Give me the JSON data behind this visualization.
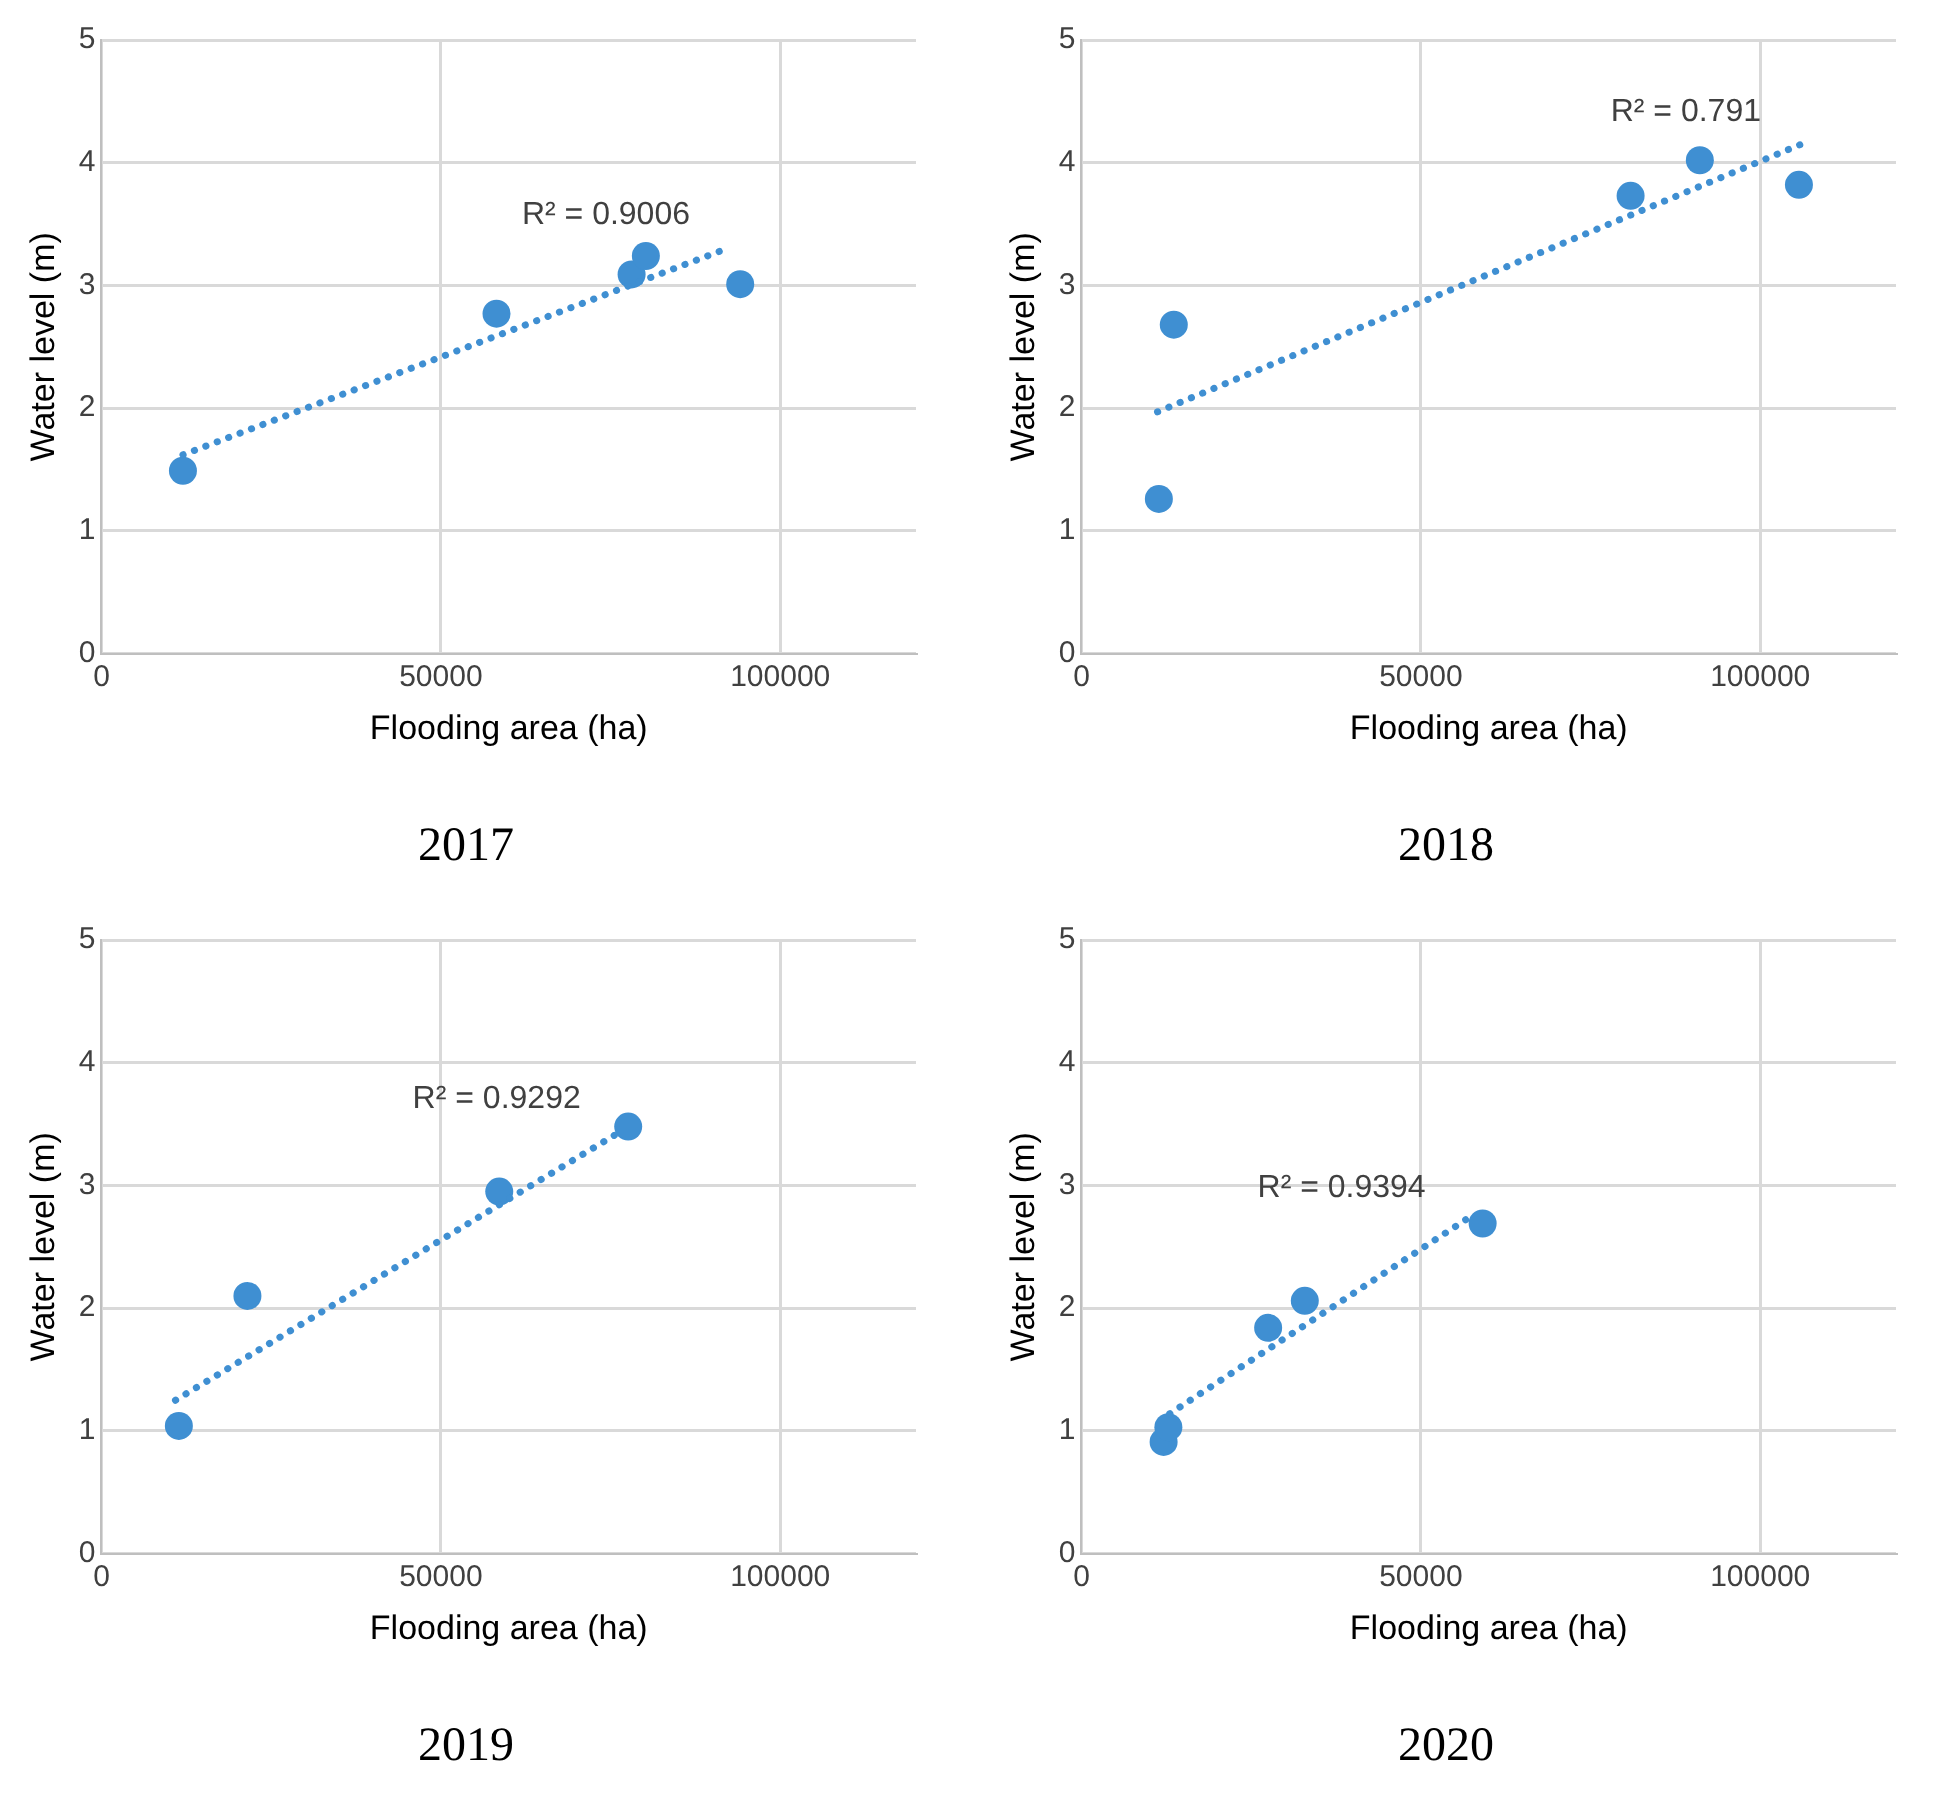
{
  "chart_data": [
    {
      "type": "scatter",
      "title": "2017",
      "xlabel": "Flooding area (ha)",
      "ylabel": "Water level (m)",
      "xlim": [
        0,
        120000
      ],
      "xticks": [
        0,
        50000,
        100000
      ],
      "ylim": [
        0,
        5
      ],
      "yticks": [
        0,
        1,
        2,
        3,
        4,
        5
      ],
      "grid": true,
      "legend": false,
      "marker": "circle",
      "series": [
        {
          "color": "#3f8fd2",
          "x": [
            12000,
            58200,
            78100,
            80200,
            94100
          ],
          "values": [
            1.49,
            2.77,
            3.09,
            3.24,
            3.01
          ]
        },
        {
          "type": "line",
          "color": "#3f8fd2",
          "marker": "none",
          "line_style": "dotted",
          "x": [
            12000,
            92600
          ],
          "values": [
            1.62,
            3.31
          ]
        }
      ],
      "annotations": [
        "R² = 0.9006"
      ]
    },
    {
      "type": "scatter",
      "title": "2018",
      "xlabel": "Flooding area (ha)",
      "ylabel": "Water level (m)",
      "xlim": [
        0,
        120000
      ],
      "xticks": [
        0,
        50000,
        100000
      ],
      "ylim": [
        0,
        5
      ],
      "yticks": [
        0,
        1,
        2,
        3,
        4,
        5
      ],
      "grid": true,
      "legend": false,
      "marker": "circle",
      "series": [
        {
          "color": "#3f8fd2",
          "x": [
            11400,
            13600,
            80900,
            91100,
            105700
          ],
          "values": [
            1.26,
            2.68,
            3.73,
            4.02,
            3.82
          ]
        },
        {
          "type": "line",
          "color": "#3f8fd2",
          "marker": "none",
          "line_style": "dotted",
          "x": [
            11200,
            106000
          ],
          "values": [
            1.97,
            4.15
          ]
        }
      ],
      "annotations": [
        "R² = 0.791"
      ]
    },
    {
      "type": "scatter",
      "title": "2019",
      "xlabel": "Flooding area (ha)",
      "ylabel": "Water level (m)",
      "xlim": [
        0,
        120000
      ],
      "xticks": [
        0,
        50000,
        100000
      ],
      "ylim": [
        0,
        5
      ],
      "yticks": [
        0,
        1,
        2,
        3,
        4,
        5
      ],
      "grid": true,
      "legend": false,
      "marker": "circle",
      "series": [
        {
          "color": "#3f8fd2",
          "x": [
            11400,
            21500,
            58600,
            77600
          ],
          "values": [
            1.04,
            2.1,
            2.95,
            3.48
          ]
        },
        {
          "type": "line",
          "color": "#3f8fd2",
          "marker": "none",
          "line_style": "dotted",
          "x": [
            10900,
            76500
          ],
          "values": [
            1.25,
            3.44
          ]
        }
      ],
      "annotations": [
        "R² = 0.9292"
      ]
    },
    {
      "type": "scatter",
      "title": "2020",
      "xlabel": "Flooding area (ha)",
      "ylabel": "Water level (m)",
      "xlim": [
        0,
        120000
      ],
      "xticks": [
        0,
        50000,
        100000
      ],
      "ylim": [
        0,
        5
      ],
      "yticks": [
        0,
        1,
        2,
        3,
        4,
        5
      ],
      "grid": true,
      "legend": false,
      "marker": "circle",
      "series": [
        {
          "color": "#3f8fd2",
          "x": [
            12100,
            12800,
            27500,
            32900,
            59100
          ],
          "values": [
            0.91,
            1.03,
            1.84,
            2.06,
            2.69
          ]
        },
        {
          "type": "line",
          "color": "#3f8fd2",
          "marker": "none",
          "line_style": "dotted",
          "x": [
            13000,
            56600
          ],
          "values": [
            1.14,
            2.72
          ]
        }
      ],
      "annotations": [
        "R² = 0.9394"
      ]
    }
  ]
}
